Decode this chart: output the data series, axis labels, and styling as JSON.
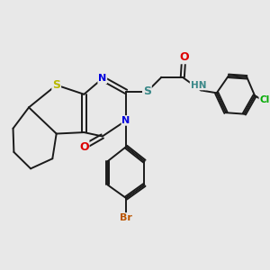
{
  "bg_color": "#e8e8e8",
  "bond_color": "#1a1a1a",
  "bond_width": 1.4,
  "atom_colors": {
    "S_thio": "#b8b800",
    "S_sulfanyl": "#3a8888",
    "N": "#0000dd",
    "O": "#dd0000",
    "Br": "#bb5500",
    "Cl": "#00aa00",
    "H": "#3a8888"
  },
  "font_size": 8.0,
  "xlim": [
    0,
    10
  ],
  "ylim": [
    0,
    10
  ]
}
